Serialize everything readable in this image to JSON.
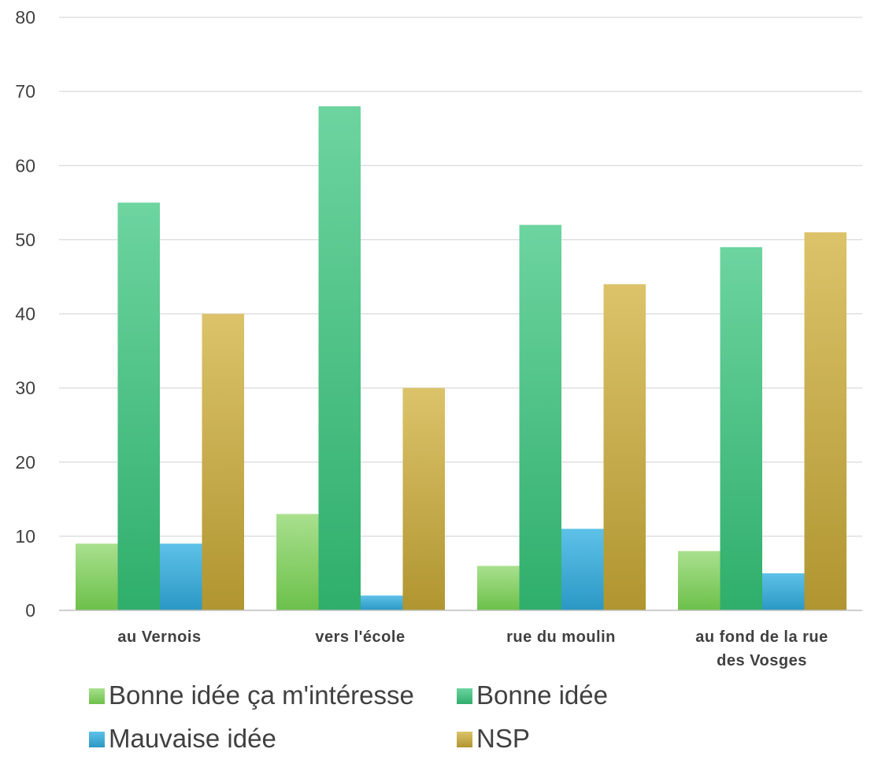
{
  "chart_data": {
    "type": "bar",
    "categories": [
      [
        "au Vernois"
      ],
      [
        "vers l'école"
      ],
      [
        "rue du moulin"
      ],
      [
        "au fond de la rue",
        "des Vosges"
      ]
    ],
    "series": [
      {
        "name": "Bonne idée ça m'intéresse",
        "values": [
          9,
          13,
          6,
          8
        ],
        "color_top": "#a9e08e",
        "color_bottom": "#6cc04a"
      },
      {
        "name": "Bonne idée",
        "values": [
          55,
          68,
          52,
          49
        ],
        "color_top": "#6dd4a0",
        "color_bottom": "#2fae6b"
      },
      {
        "name": "Mauvaise idée",
        "values": [
          9,
          2,
          11,
          5
        ],
        "color_top": "#5ec1e8",
        "color_bottom": "#2a98c4"
      },
      {
        "name": "NSP",
        "values": [
          40,
          30,
          44,
          51
        ],
        "color_top": "#dcc36a",
        "color_bottom": "#b09530"
      }
    ],
    "ylim": [
      0,
      80
    ],
    "yticks": [
      0,
      10,
      20,
      30,
      40,
      50,
      60,
      70,
      80
    ],
    "grid": true,
    "legend_position": "bottom",
    "xlabel": "",
    "ylabel": "",
    "title": ""
  }
}
